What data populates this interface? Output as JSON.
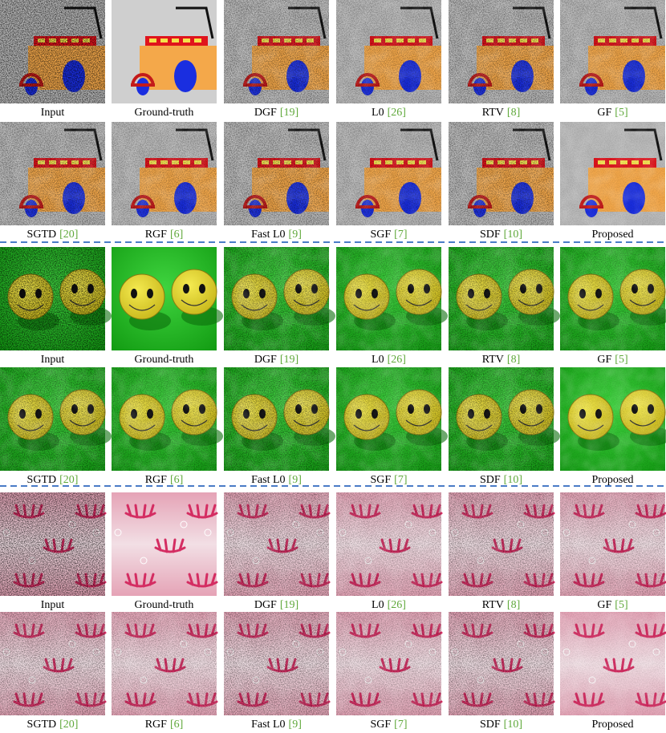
{
  "groups": [
    {
      "rows": [
        [
          {
            "name": "Input"
          },
          {
            "name": "Ground-truth"
          },
          {
            "name": "DGF",
            "ref": "[19]"
          },
          {
            "name": "L0",
            "ref": "[26]"
          },
          {
            "name": "RTV",
            "ref": "[8]"
          },
          {
            "name": "GF",
            "ref": "[5]"
          }
        ],
        [
          {
            "name": "SGTD",
            "ref": "[20]"
          },
          {
            "name": "RGF",
            "ref": "[6]"
          },
          {
            "name": "Fast L0",
            "ref": "[9]"
          },
          {
            "name": "SGF",
            "ref": "[7]"
          },
          {
            "name": "SDF",
            "ref": "[10]"
          },
          {
            "name": "Proposed"
          }
        ]
      ]
    },
    {
      "rows": [
        [
          {
            "name": "Input"
          },
          {
            "name": "Ground-truth"
          },
          {
            "name": "DGF",
            "ref": "[19]"
          },
          {
            "name": "L0",
            "ref": "[26]"
          },
          {
            "name": "RTV",
            "ref": "[8]"
          },
          {
            "name": "GF",
            "ref": "[5]"
          }
        ],
        [
          {
            "name": "SGTD",
            "ref": "[20]"
          },
          {
            "name": "RGF",
            "ref": "[6]"
          },
          {
            "name": "Fast L0",
            "ref": "[9]"
          },
          {
            "name": "SGF",
            "ref": "[7]"
          },
          {
            "name": "SDF",
            "ref": "[10]"
          },
          {
            "name": "Proposed"
          }
        ]
      ]
    },
    {
      "rows": [
        [
          {
            "name": "Input"
          },
          {
            "name": "Ground-truth"
          },
          {
            "name": "DGF",
            "ref": "[19]"
          },
          {
            "name": "L0",
            "ref": "[26]"
          },
          {
            "name": "RTV",
            "ref": "[8]"
          },
          {
            "name": "GF",
            "ref": "[5]"
          }
        ],
        [
          {
            "name": "SGTD",
            "ref": "[20]"
          },
          {
            "name": "RGF",
            "ref": "[6]"
          },
          {
            "name": "Fast L0",
            "ref": "[9]"
          },
          {
            "name": "SGF",
            "ref": "[7]"
          },
          {
            "name": "SDF",
            "ref": "[10]"
          },
          {
            "name": "Proposed"
          }
        ]
      ]
    }
  ]
}
